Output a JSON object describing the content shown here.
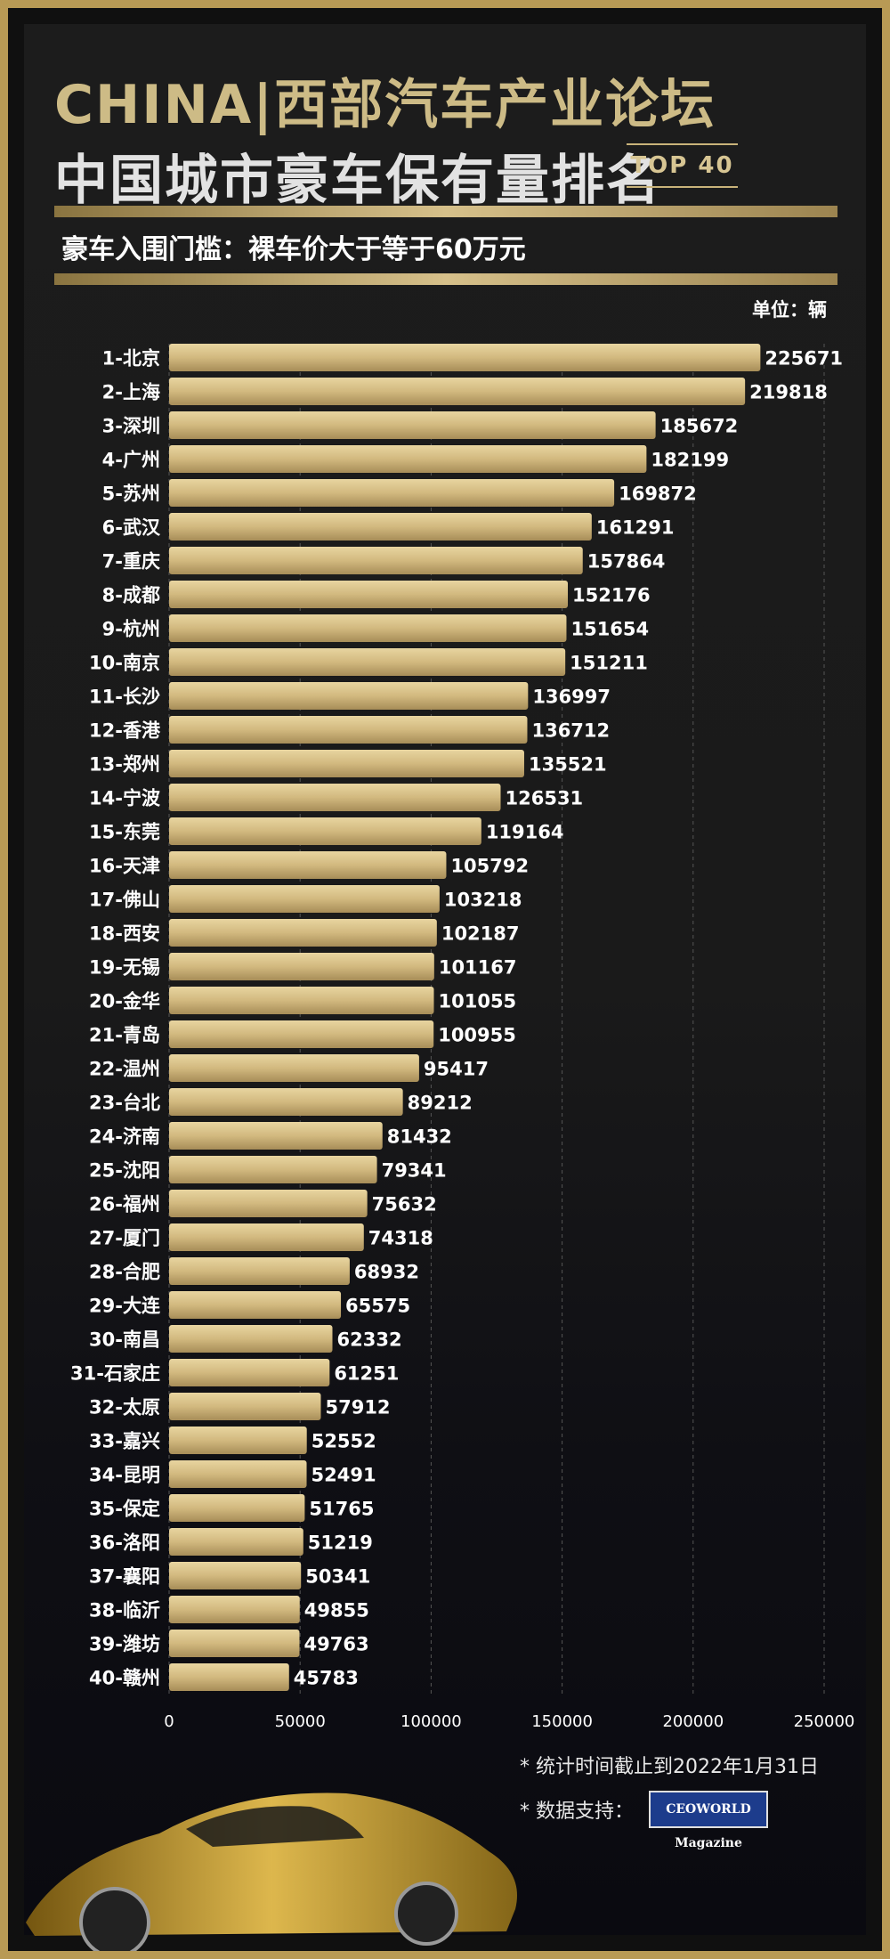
{
  "header": {
    "title_line1": "CHINA|西部汽车产业论坛",
    "title_line2": "中国城市豪车保有量排名",
    "badge": "TOP 40",
    "threshold": "豪车入围门槛：裸车价大于等于60万元",
    "unit": "单位：辆"
  },
  "footer": {
    "note": "* 统计时间截止到2022年1月31日",
    "source_label": "* 数据支持：",
    "source_logo_text": "CEOWORLD Magazine"
  },
  "colors": {
    "bar": "#d8c08a",
    "bar_dark": "#b39a62",
    "gold_text": "#cdbb86",
    "background": "#1a1a1a"
  },
  "chart_data": {
    "type": "bar",
    "orientation": "horizontal",
    "categories": [
      "1-北京",
      "2-上海",
      "3-深圳",
      "4-广州",
      "5-苏州",
      "6-武汉",
      "7-重庆",
      "8-成都",
      "9-杭州",
      "10-南京",
      "11-长沙",
      "12-香港",
      "13-郑州",
      "14-宁波",
      "15-东莞",
      "16-天津",
      "17-佛山",
      "18-西安",
      "19-无锡",
      "20-金华",
      "21-青岛",
      "22-温州",
      "23-台北",
      "24-济南",
      "25-沈阳",
      "26-福州",
      "27-厦门",
      "28-合肥",
      "29-大连",
      "30-南昌",
      "31-石家庄",
      "32-太原",
      "33-嘉兴",
      "34-昆明",
      "35-保定",
      "36-洛阳",
      "37-襄阳",
      "38-临沂",
      "39-潍坊",
      "40-赣州"
    ],
    "values": [
      225671,
      219818,
      185672,
      182199,
      169872,
      161291,
      157864,
      152176,
      151654,
      151211,
      136997,
      136712,
      135521,
      126531,
      119164,
      105792,
      103218,
      102187,
      101167,
      101055,
      100955,
      95417,
      89212,
      81432,
      79341,
      75632,
      74318,
      68932,
      65575,
      62332,
      61251,
      57912,
      52552,
      52491,
      51765,
      51219,
      50341,
      49855,
      49763,
      45783
    ],
    "xlim": [
      0,
      250000
    ],
    "xticks": [
      "0",
      "50000",
      "100000",
      "150000",
      "200000",
      "250000"
    ],
    "grid": true
  }
}
